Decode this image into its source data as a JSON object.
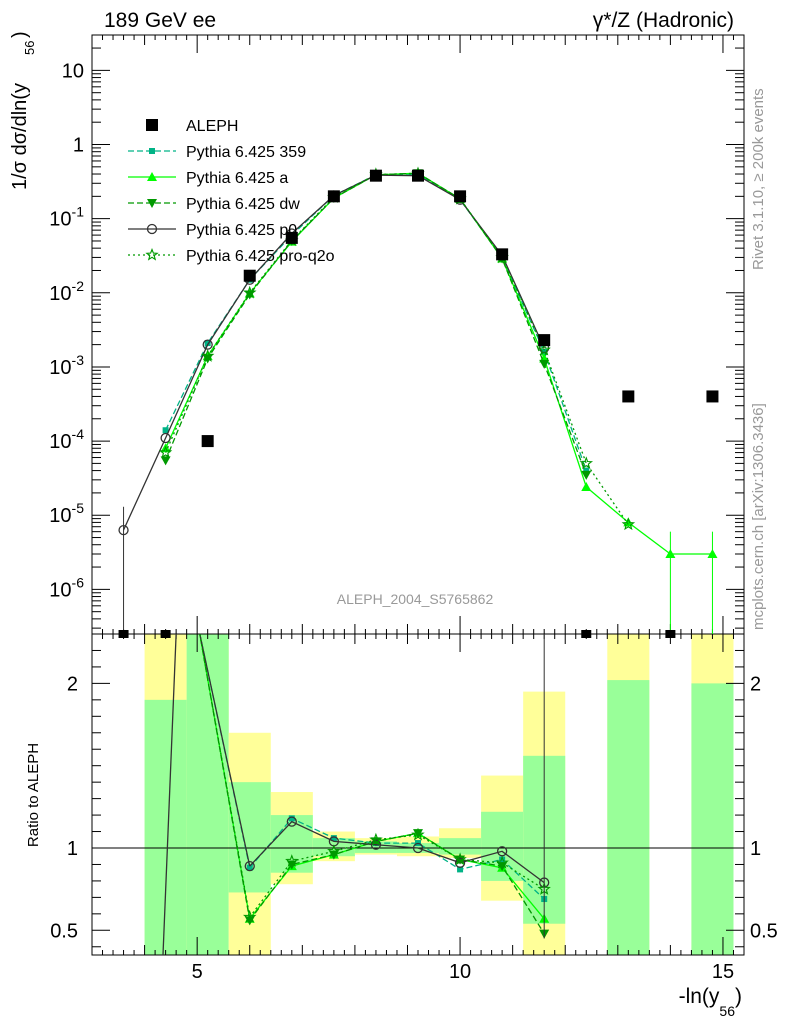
{
  "header": {
    "left": "189 GeV ee",
    "right": "γ*/Z (Hadronic)"
  },
  "side_text": {
    "top": "Rivet 3.1.10, ≥ 200k events",
    "bottom": "mcplots.cern.ch [arXiv:1306.3436]"
  },
  "watermark": "ALEPH_2004_S5765862",
  "main_ylabel": "1/σ  dσ/dln(y",
  "main_ylabel_sub": "56",
  "main_ylabel_end": ")",
  "ratio_ylabel": "Ratio to ALEPH",
  "xlabel": "-ln(y",
  "xlabel_sub": "56",
  "xlabel_end": ")",
  "legend": [
    {
      "label": "ALEPH",
      "color": "#000000",
      "marker": "square",
      "dash": "none"
    },
    {
      "label": "Pythia 6.425 359",
      "color": "#00b386",
      "marker": "square-small",
      "dash": "dash"
    },
    {
      "label": "Pythia 6.425 a",
      "color": "#00ff00",
      "marker": "triangle-up",
      "dash": "solid"
    },
    {
      "label": "Pythia 6.425 dw",
      "color": "#009900",
      "marker": "triangle-down",
      "dash": "dash"
    },
    {
      "label": "Pythia 6.425 p0",
      "color": "#333333",
      "marker": "circle-open",
      "dash": "solid"
    },
    {
      "label": "Pythia 6.425 pro-q2o",
      "color": "#009900",
      "marker": "star-open",
      "dash": "dot"
    }
  ],
  "chart_data": {
    "type": "scatter",
    "xlim": [
      3.0,
      15.4
    ],
    "ylim_log": [
      2.5e-07,
      30
    ],
    "ratio_ylim": [
      0.35,
      2.3
    ],
    "x_ticks": [
      5,
      10,
      15
    ],
    "y_ticks": [
      "10^-6",
      "10^-5",
      "10^-4",
      "10^-3",
      "10^-2",
      "10^-1",
      "1",
      "10"
    ],
    "ratio_ticks": [
      0.5,
      1,
      2
    ],
    "bins": [
      3.6,
      4.4,
      5.2,
      6.0,
      6.8,
      7.6,
      8.4,
      9.2,
      10.0,
      10.8,
      11.6,
      12.4,
      13.2,
      14.0,
      14.8
    ],
    "aleph": [
      {
        "x": 5.2,
        "y": 0.0001
      },
      {
        "x": 6.0,
        "y": 0.017
      },
      {
        "x": 6.8,
        "y": 0.055
      },
      {
        "x": 7.6,
        "y": 0.2
      },
      {
        "x": 8.4,
        "y": 0.38
      },
      {
        "x": 9.2,
        "y": 0.38
      },
      {
        "x": 10.0,
        "y": 0.2
      },
      {
        "x": 10.8,
        "y": 0.033
      },
      {
        "x": 11.6,
        "y": 0.0023
      },
      {
        "x": 13.2,
        "y": 0.0004
      },
      {
        "x": 14.8,
        "y": 0.0004
      }
    ],
    "aleph_offscale_x": [
      3.6,
      4.4,
      12.4,
      14.0
    ],
    "series": [
      {
        "name": "Pythia 6.425 359",
        "x": [
          4.4,
          5.2,
          6.0,
          6.8,
          7.6,
          8.4,
          9.2,
          10.0,
          10.8,
          11.6,
          12.4
        ],
        "y": [
          0.00014,
          0.0021,
          0.015,
          0.06,
          0.205,
          0.39,
          0.39,
          0.18,
          0.03,
          0.0016,
          4e-05
        ]
      },
      {
        "name": "Pythia 6.425 a",
        "x": [
          4.4,
          5.2,
          6.0,
          6.8,
          7.6,
          8.4,
          9.2,
          10.0,
          10.8,
          11.6,
          12.4,
          13.2,
          14.0,
          14.8
        ],
        "y": [
          8e-05,
          0.0014,
          0.0098,
          0.049,
          0.19,
          0.39,
          0.41,
          0.185,
          0.029,
          0.0013,
          2.4e-05,
          8e-06,
          3e-06,
          3e-06
        ]
      },
      {
        "name": "Pythia 6.425 dw",
        "x": [
          4.4,
          5.2,
          6.0,
          6.8,
          7.6,
          8.4,
          9.2,
          10.0,
          10.8,
          11.6,
          12.4
        ],
        "y": [
          5.5e-05,
          0.0013,
          0.0095,
          0.05,
          0.19,
          0.39,
          0.41,
          0.185,
          0.029,
          0.0011,
          3.5e-05
        ]
      },
      {
        "name": "Pythia 6.425 p0",
        "x": [
          3.6,
          4.4,
          5.2,
          6.0,
          6.8,
          7.6,
          8.4,
          9.2,
          10.0,
          10.8,
          11.6
        ],
        "y": [
          6.3e-06,
          0.00011,
          0.002,
          0.015,
          0.063,
          0.205,
          0.385,
          0.38,
          0.18,
          0.032,
          0.0018
        ]
      },
      {
        "name": "Pythia 6.425 pro-q2o",
        "x": [
          4.4,
          5.2,
          6.0,
          6.8,
          7.6,
          8.4,
          9.2,
          10.0,
          10.8,
          11.6,
          12.4,
          13.2
        ],
        "y": [
          7e-05,
          0.0014,
          0.01,
          0.051,
          0.195,
          0.395,
          0.405,
          0.185,
          0.03,
          0.0017,
          5e-05,
          7.5e-06
        ]
      }
    ],
    "ratio_series": [
      {
        "name": "Pythia 6.425 359",
        "x": [
          6.0,
          6.8,
          7.6,
          8.4,
          9.2,
          10.0,
          10.8,
          11.6
        ],
        "y": [
          0.88,
          1.18,
          1.06,
          1.03,
          1.03,
          0.87,
          0.93,
          0.69
        ]
      },
      {
        "name": "Pythia 6.425 a",
        "x": [
          6.0,
          6.8,
          7.6,
          8.4,
          9.2,
          10.0,
          10.8,
          11.6
        ],
        "y": [
          0.57,
          0.89,
          0.96,
          1.04,
          1.09,
          0.93,
          0.88,
          0.57
        ]
      },
      {
        "name": "Pythia 6.425 dw",
        "x": [
          6.0,
          6.8,
          7.6,
          8.4,
          9.2,
          10.0,
          10.8,
          11.6
        ],
        "y": [
          0.56,
          0.9,
          0.96,
          1.04,
          1.09,
          0.93,
          0.89,
          0.48
        ]
      },
      {
        "name": "Pythia 6.425 p0",
        "x": [
          6.0,
          6.8,
          7.6,
          8.4,
          9.2,
          10.0,
          10.8,
          11.6
        ],
        "y": [
          0.89,
          1.16,
          1.04,
          1.02,
          1.0,
          0.91,
          0.98,
          0.79
        ]
      },
      {
        "name": "Pythia 6.425 pro-q2o",
        "x": [
          6.0,
          6.8,
          7.6,
          8.4,
          9.2,
          10.0,
          10.8,
          11.6
        ],
        "y": [
          0.58,
          0.92,
          0.98,
          1.05,
          1.08,
          0.93,
          0.91,
          0.75
        ]
      }
    ],
    "ratio_bands": [
      {
        "x0": 4.0,
        "x1": 4.8,
        "yellow": [
          0.35,
          2.3
        ],
        "green": [
          0.35,
          1.9
        ]
      },
      {
        "x0": 4.8,
        "x1": 5.6,
        "yellow": [
          0.35,
          2.3
        ],
        "green": [
          0.35,
          2.3
        ]
      },
      {
        "x0": 5.6,
        "x1": 6.4,
        "yellow": [
          0.35,
          1.7
        ],
        "green": [
          0.73,
          1.4
        ]
      },
      {
        "x0": 6.4,
        "x1": 7.2,
        "yellow": [
          0.78,
          1.34
        ],
        "green": [
          0.85,
          1.2
        ]
      },
      {
        "x0": 7.2,
        "x1": 8.0,
        "yellow": [
          0.92,
          1.1
        ],
        "green": [
          0.95,
          1.06
        ]
      },
      {
        "x0": 8.0,
        "x1": 8.8,
        "yellow": [
          0.96,
          1.06
        ],
        "green": [
          0.97,
          1.04
        ]
      },
      {
        "x0": 8.8,
        "x1": 9.6,
        "yellow": [
          0.95,
          1.07
        ],
        "green": [
          0.97,
          1.03
        ]
      },
      {
        "x0": 9.6,
        "x1": 10.4,
        "yellow": [
          0.94,
          1.12
        ],
        "green": [
          0.96,
          1.06
        ]
      },
      {
        "x0": 10.4,
        "x1": 11.2,
        "yellow": [
          0.68,
          1.44
        ],
        "green": [
          0.8,
          1.22
        ]
      },
      {
        "x0": 11.2,
        "x1": 12.0,
        "yellow": [
          0.35,
          1.95
        ],
        "green": [
          0.54,
          1.56
        ]
      },
      {
        "x0": 12.8,
        "x1": 13.6,
        "yellow": [
          0.35,
          2.3
        ],
        "green": [
          0.35,
          2.02
        ]
      },
      {
        "x0": 14.4,
        "x1": 15.2,
        "yellow": [
          0.35,
          2.3
        ],
        "green": [
          0.35,
          2.0
        ]
      }
    ]
  }
}
